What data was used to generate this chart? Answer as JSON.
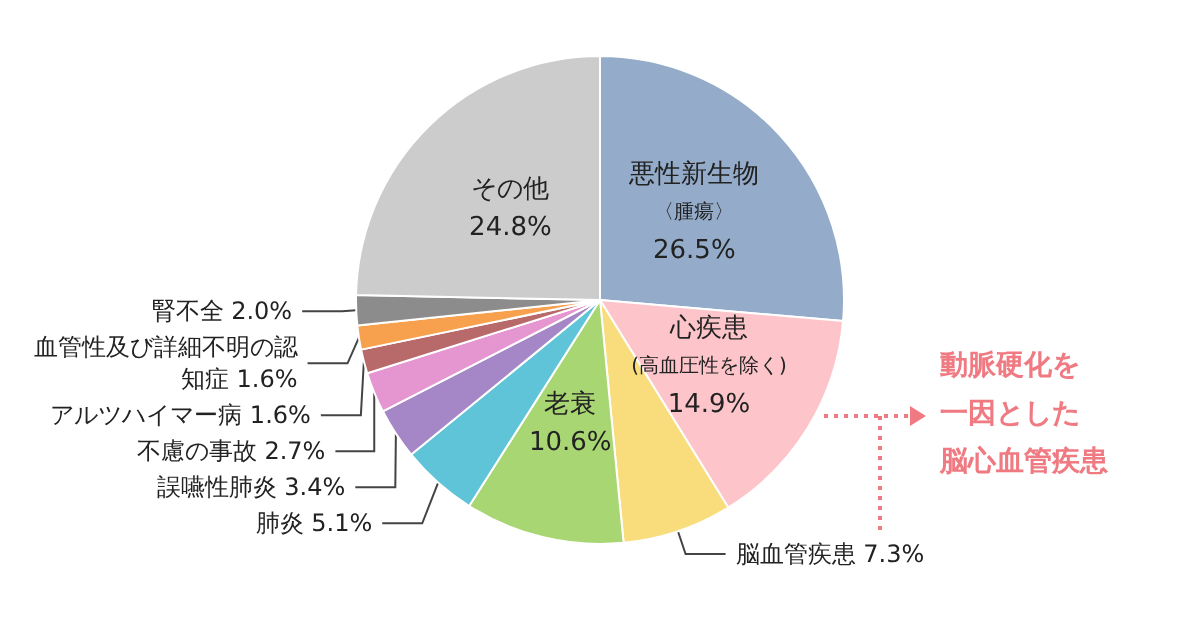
{
  "chart_data": {
    "type": "pie",
    "categories": [
      "悪性新生物〈腫瘍〉",
      "心疾患(高血圧性を除く)",
      "脳血管疾患",
      "老衰",
      "肺炎",
      "誤嚥性肺炎",
      "不慮の事故",
      "アルツハイマー病",
      "血管性及び詳細不明の認知症",
      "腎不全",
      "その他"
    ],
    "values": [
      26.5,
      14.9,
      7.3,
      10.6,
      5.1,
      3.4,
      2.7,
      1.6,
      1.6,
      2.0,
      24.8
    ],
    "value_labels": [
      "26.5%",
      "14.9%",
      "7.3%",
      "10.6%",
      "5.1%",
      "3.4%",
      "2.7%",
      "1.6%",
      "1.6%",
      "2.0%",
      "24.8%"
    ],
    "colors": [
      "#94acc9",
      "#fdc5ca",
      "#f9dd7c",
      "#a8d672",
      "#5fc4d8",
      "#a586c6",
      "#e595cf",
      "#b86a6a",
      "#f7a04d",
      "#8c8c8c",
      "#cccccc"
    ],
    "annotations": [
      "動脈硬化を",
      "一因とした",
      "脳心血管疾患"
    ],
    "legend": false
  }
}
